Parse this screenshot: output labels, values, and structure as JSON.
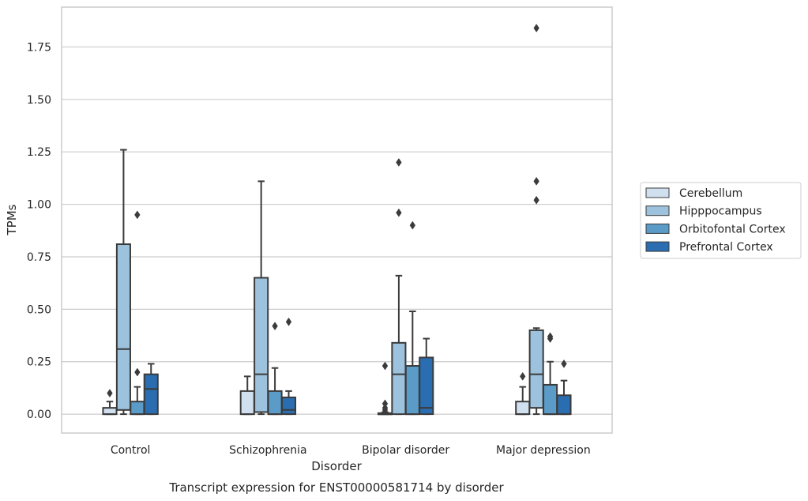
{
  "caption": "Transcript expression for ENST00000581714 by disorder",
  "chart_data": {
    "type": "box",
    "xlabel": "Disorder",
    "ylabel": "TPMs",
    "ylim": [
      -0.09,
      1.94
    ],
    "yticks": [
      "0.00",
      "0.25",
      "0.50",
      "0.75",
      "1.00",
      "1.25",
      "1.50",
      "1.75"
    ],
    "ytick_values": [
      0,
      0.25,
      0.5,
      0.75,
      1.0,
      1.25,
      1.5,
      1.75
    ],
    "grid": true,
    "legend_position": "right",
    "categories": [
      "Control",
      "Schizophrenia",
      "Bipolar disorder",
      "Major depression"
    ],
    "series": [
      {
        "name": "Cerebellum",
        "color": "#d1e0ef",
        "boxes": [
          {
            "whislo": 0,
            "q1": 0,
            "med": 0,
            "q3": 0.03,
            "whishi": 0.06,
            "fliers": [
              0.1
            ]
          },
          {
            "whislo": 0,
            "q1": 0,
            "med": 0,
            "q3": 0.11,
            "whishi": 0.18,
            "fliers": []
          },
          {
            "whislo": 0,
            "q1": 0,
            "med": 0,
            "q3": 0.005,
            "whishi": 0.01,
            "fliers": [
              0.02,
              0.03,
              0.05,
              0.23
            ]
          },
          {
            "whislo": 0,
            "q1": 0,
            "med": 0,
            "q3": 0.06,
            "whishi": 0.13,
            "fliers": [
              0.18
            ]
          }
        ]
      },
      {
        "name": "Hipppocampus",
        "color": "#9cc2dd",
        "boxes": [
          {
            "whislo": 0,
            "q1": 0.02,
            "med": 0.31,
            "q3": 0.81,
            "whishi": 1.26,
            "fliers": []
          },
          {
            "whislo": 0,
            "q1": 0.01,
            "med": 0.19,
            "q3": 0.65,
            "whishi": 1.11,
            "fliers": []
          },
          {
            "whislo": 0,
            "q1": 0,
            "med": 0.19,
            "q3": 0.34,
            "whishi": 0.66,
            "fliers": [
              0.96,
              1.2
            ]
          },
          {
            "whislo": 0,
            "q1": 0.03,
            "med": 0.19,
            "q3": 0.4,
            "whishi": 0.41,
            "fliers": [
              1.02,
              1.11,
              1.84
            ]
          }
        ]
      },
      {
        "name": "Orbitofontal Cortex",
        "color": "#5a9bc8",
        "boxes": [
          {
            "whislo": 0,
            "q1": 0,
            "med": 0,
            "q3": 0.06,
            "whishi": 0.13,
            "fliers": [
              0.2,
              0.95
            ]
          },
          {
            "whislo": 0,
            "q1": 0,
            "med": 0,
            "q3": 0.11,
            "whishi": 0.22,
            "fliers": [
              0.42
            ]
          },
          {
            "whislo": 0,
            "q1": 0,
            "med": 0,
            "q3": 0.23,
            "whishi": 0.49,
            "fliers": [
              0.9
            ]
          },
          {
            "whislo": 0,
            "q1": 0,
            "med": 0,
            "q3": 0.14,
            "whishi": 0.25,
            "fliers": [
              0.36,
              0.37
            ]
          }
        ]
      },
      {
        "name": "Prefrontal Cortex",
        "color": "#2a6db0",
        "boxes": [
          {
            "whislo": 0,
            "q1": 0,
            "med": 0.12,
            "q3": 0.19,
            "whishi": 0.24,
            "fliers": []
          },
          {
            "whislo": 0,
            "q1": 0,
            "med": 0.02,
            "q3": 0.08,
            "whishi": 0.11,
            "fliers": [
              0.44
            ]
          },
          {
            "whislo": 0,
            "q1": 0,
            "med": 0.03,
            "q3": 0.27,
            "whishi": 0.36,
            "fliers": []
          },
          {
            "whislo": 0,
            "q1": 0,
            "med": 0,
            "q3": 0.09,
            "whishi": 0.16,
            "fliers": [
              0.24
            ]
          }
        ]
      }
    ]
  }
}
